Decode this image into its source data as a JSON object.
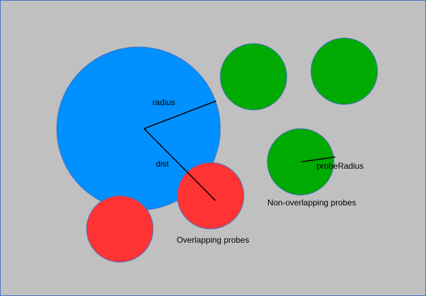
{
  "colors": {
    "background": "#C0C0C0",
    "border": "#4472C4",
    "main_circle": "#0090FF",
    "overlapping_probe": "#FF3333",
    "non_overlapping_probe": "#00AA00",
    "line": "#000000"
  },
  "labels": {
    "radius": "radius",
    "dist": "dist",
    "probe_radius": "probeRadius",
    "overlapping": "Overlapping probes",
    "non_overlapping": "Non-overlapping probes"
  }
}
